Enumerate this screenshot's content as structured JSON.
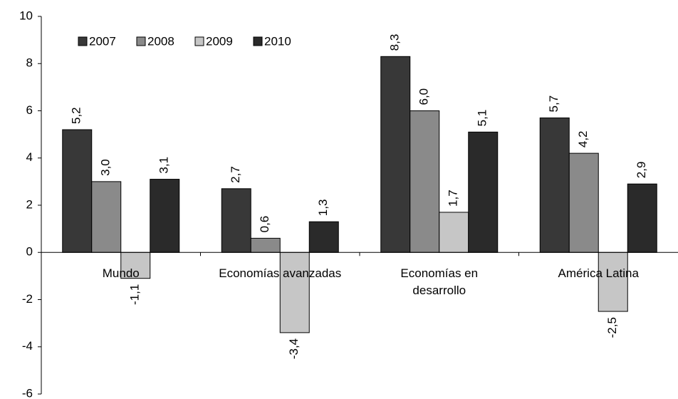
{
  "chart_data": {
    "type": "bar",
    "categories": [
      "Mundo",
      "Economías avanzadas",
      "Economías en desarrollo",
      "América Latina"
    ],
    "series": [
      {
        "name": "2007",
        "color": "#383838",
        "values": [
          5.2,
          2.7,
          8.3,
          5.7
        ],
        "value_labels": [
          "5,2",
          "2,7",
          "8,3",
          "5,7"
        ]
      },
      {
        "name": "2008",
        "color": "#8a8a8a",
        "values": [
          3.0,
          0.6,
          6.0,
          4.2
        ],
        "value_labels": [
          "3,0",
          "0,6",
          "6,0",
          "4,2"
        ]
      },
      {
        "name": "2009",
        "color": "#c6c6c6",
        "values": [
          -1.1,
          -3.4,
          1.7,
          -2.5
        ],
        "value_labels": [
          "-1,1",
          "-3,4",
          "1,7",
          "-2,5"
        ]
      },
      {
        "name": "2010",
        "color": "#2a2a2a",
        "values": [
          3.1,
          1.3,
          5.1,
          2.9
        ],
        "value_labels": [
          "3,1",
          "1,3",
          "5,1",
          "2,9"
        ]
      }
    ],
    "ylim": [
      -6,
      10
    ],
    "yticks": [
      -6,
      -4,
      -2,
      0,
      2,
      4,
      6,
      8,
      10
    ],
    "legend": "upper left"
  }
}
